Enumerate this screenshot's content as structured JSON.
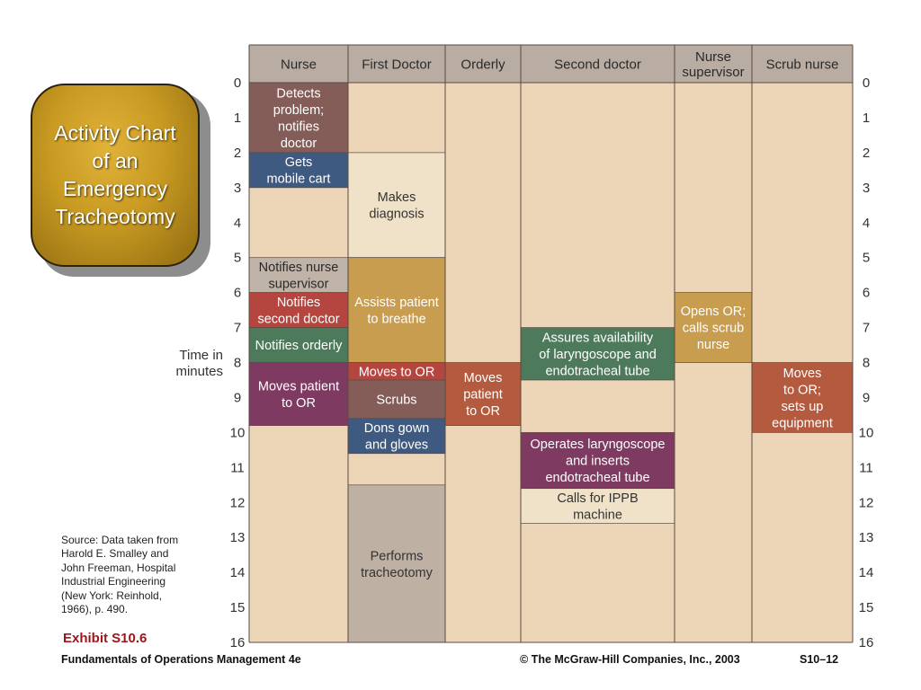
{
  "slide_title": "Activity Chart\nof an\nEmergency\nTracheotomy",
  "y_axis_label": "Time in\nminutes",
  "source_note": "Source: Data taken from\nHarold E. Smalley and\nJohn Freeman, Hospital\nIndustrial Engineering\n(New York: Reinhold,\n1966), p. 490.",
  "exhibit_label": "Exhibit S10.6",
  "footer": {
    "left": "Fundamentals of Operations Management 4e",
    "center": "© The McGraw-Hill Companies, Inc., 2003",
    "right": "S10–12"
  },
  "colors": {
    "background_fill": "#edd5b8",
    "header_fill": "#b8aca3",
    "idle_light": "#f0e2c8",
    "brown": "#845d58",
    "navy": "#3f5a80",
    "gray": "#c0b3a8",
    "red": "#b4463f",
    "green": "#4d7a5b",
    "gold": "#c89d4f",
    "plum": "#7e3a61",
    "rust": "#b35a3f",
    "taupe": "#bfb0a4"
  },
  "chart_data": {
    "type": "activity-chart",
    "xlabel": "",
    "ylabel": "Time in minutes",
    "ylim": [
      0,
      16
    ],
    "yticks": [
      0,
      1,
      2,
      3,
      4,
      5,
      6,
      7,
      8,
      9,
      10,
      11,
      12,
      13,
      14,
      15,
      16
    ],
    "columns": [
      "Nurse",
      "First Doctor",
      "Orderly",
      "Second doctor",
      "Nurse\nsupervisor",
      "Scrub nurse"
    ],
    "activities": [
      {
        "column": 0,
        "start": 0,
        "end": 2,
        "label": "Detects\nproblem;\nnotifies\ndoctor",
        "color": "brown",
        "text_color": "#ffffff"
      },
      {
        "column": 0,
        "start": 2,
        "end": 3,
        "label": "Gets\nmobile cart",
        "color": "navy",
        "text_color": "#ffffff"
      },
      {
        "column": 0,
        "start": 5,
        "end": 6,
        "label": "Notifies nurse\nsupervisor",
        "color": "gray",
        "text_color": "#2a2a2a"
      },
      {
        "column": 0,
        "start": 6,
        "end": 7,
        "label": "Notifies\nsecond doctor",
        "color": "red",
        "text_color": "#ffffff"
      },
      {
        "column": 0,
        "start": 7,
        "end": 8,
        "label": "Notifies orderly",
        "color": "green",
        "text_color": "#ffffff"
      },
      {
        "column": 0,
        "start": 8,
        "end": 9.8,
        "label": "Moves patient\nto OR",
        "color": "plum",
        "text_color": "#ffffff"
      },
      {
        "column": 1,
        "start": 2,
        "end": 5,
        "label": "Makes\ndiagnosis",
        "color": "idle_light",
        "text_color": "#333333"
      },
      {
        "column": 1,
        "start": 5,
        "end": 8,
        "label": "Assists patient\nto breathe",
        "color": "gold",
        "text_color": "#ffffff"
      },
      {
        "column": 1,
        "start": 8,
        "end": 8.5,
        "label": "Moves to OR",
        "color": "red",
        "text_color": "#ffffff"
      },
      {
        "column": 1,
        "start": 8.5,
        "end": 9.6,
        "label": "Scrubs",
        "color": "brown",
        "text_color": "#ffffff"
      },
      {
        "column": 1,
        "start": 9.6,
        "end": 10.6,
        "label": "Dons gown\nand gloves",
        "color": "navy",
        "text_color": "#ffffff"
      },
      {
        "column": 1,
        "start": 11.5,
        "end": 16,
        "label": "Performs\ntracheotomy",
        "color": "taupe",
        "text_color": "#333333"
      },
      {
        "column": 2,
        "start": 8,
        "end": 9.8,
        "label": "Moves\npatient\nto OR",
        "color": "rust",
        "text_color": "#ffffff"
      },
      {
        "column": 3,
        "start": 7,
        "end": 8.5,
        "label": "Assures availability\nof laryngoscope and\nendotracheal tube",
        "color": "green",
        "text_color": "#ffffff"
      },
      {
        "column": 3,
        "start": 10,
        "end": 11.6,
        "label": "Operates laryngoscope\nand inserts\nendotracheal tube",
        "color": "plum",
        "text_color": "#ffffff"
      },
      {
        "column": 3,
        "start": 11.6,
        "end": 12.6,
        "label": "Calls for IPPB\nmachine",
        "color": "idle_light",
        "text_color": "#333333"
      },
      {
        "column": 4,
        "start": 6,
        "end": 8,
        "label": "Opens OR;\ncalls scrub\nnurse",
        "color": "gold",
        "text_color": "#ffffff"
      },
      {
        "column": 5,
        "start": 8,
        "end": 10,
        "label": "Moves\nto OR;\nsets up\nequipment",
        "color": "rust",
        "text_color": "#ffffff"
      }
    ]
  }
}
